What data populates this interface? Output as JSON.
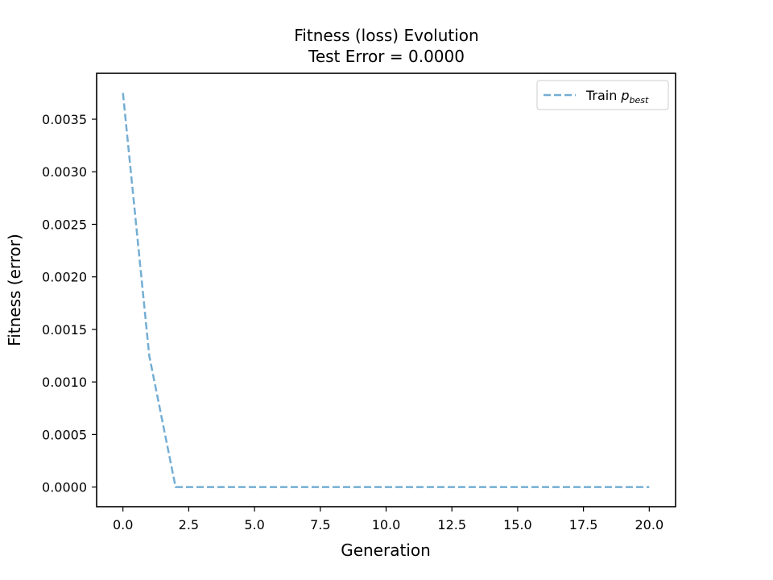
{
  "chart_data": {
    "type": "line",
    "title": "Fitness (loss) Evolution",
    "subtitle": "Test Error = 0.0000",
    "xlabel": "Generation",
    "ylabel": "Fitness (error)",
    "xlim": [
      -1.0,
      21.0
    ],
    "ylim": [
      -0.000187,
      0.003937
    ],
    "x_ticks": [
      0,
      2.5,
      5,
      7.5,
      10,
      12.5,
      15,
      17.5,
      20
    ],
    "x_tick_labels": [
      "0.0",
      "2.5",
      "5.0",
      "7.5",
      "10.0",
      "12.5",
      "15.0",
      "17.5",
      "20.0"
    ],
    "y_ticks": [
      0,
      0.0005,
      0.001,
      0.0015,
      0.002,
      0.0025,
      0.003,
      0.0035
    ],
    "y_tick_labels": [
      "0.0000",
      "0.0005",
      "0.0010",
      "0.0015",
      "0.0020",
      "0.0025",
      "0.0030",
      "0.0035"
    ],
    "grid": false,
    "legend_position": "top-right",
    "series": [
      {
        "name": "Train",
        "name_italic": "p",
        "name_subscript": "best",
        "color": "#74aed3",
        "linestyle": "dashed",
        "x": [
          0,
          1,
          2,
          3,
          4,
          5,
          6,
          7,
          8,
          9,
          10,
          11,
          12,
          13,
          14,
          15,
          16,
          17,
          18,
          19,
          20
        ],
        "values": [
          0.00375,
          0.00125,
          0.0,
          0.0,
          0.0,
          0.0,
          0.0,
          0.0,
          0.0,
          0.0,
          0.0,
          0.0,
          0.0,
          0.0,
          0.0,
          0.0,
          0.0,
          0.0,
          0.0,
          0.0,
          0.0
        ]
      }
    ]
  }
}
